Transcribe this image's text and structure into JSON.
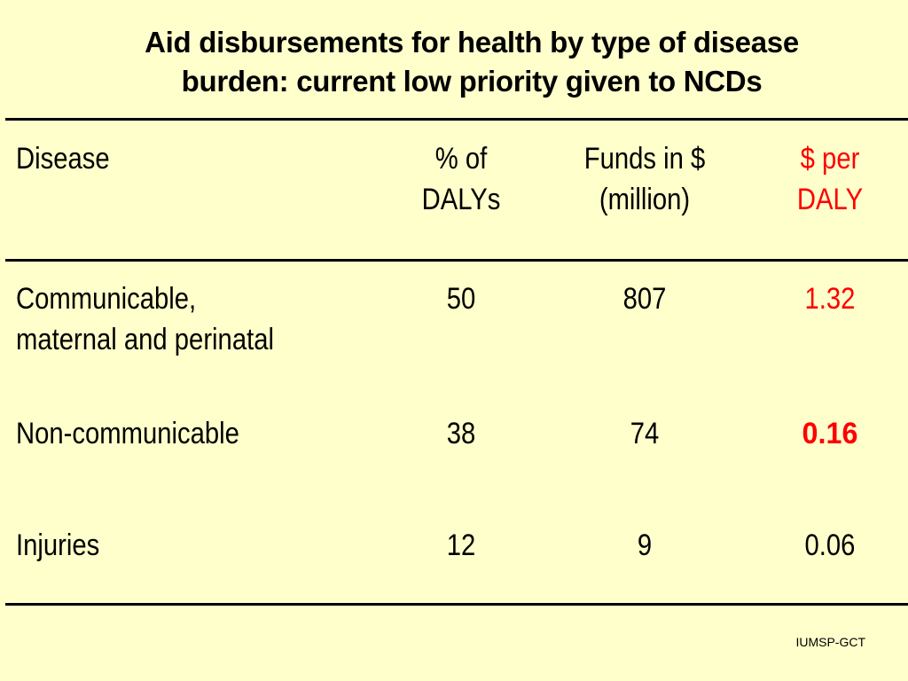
{
  "title": {
    "line1": "Aid disbursements for health by type of disease",
    "line2": "burden: current low priority given to NCDs"
  },
  "table": {
    "headers": {
      "disease": "Disease",
      "dalys_line1": "% of",
      "dalys_line2": "DALYs",
      "funds_line1": "Funds in $",
      "funds_line2": "(million)",
      "per_daly_line1": "$ per",
      "per_daly_line2": "DALY"
    },
    "rows": [
      {
        "disease_line1": "Communicable,",
        "disease_line2": "maternal and perinatal",
        "dalys": "50",
        "funds": "807",
        "per_daly": "1.32"
      },
      {
        "disease_line1": "Non-communicable",
        "dalys": "38",
        "funds": "74",
        "per_daly": "0.16"
      },
      {
        "disease_line1": "Injuries",
        "dalys": "12",
        "funds": "9",
        "per_daly": "0.06"
      }
    ]
  },
  "footer": "IUMSP-GCT",
  "colors": {
    "background": "#FFFFCC",
    "highlight": "#FF0000",
    "text": "#000000"
  }
}
